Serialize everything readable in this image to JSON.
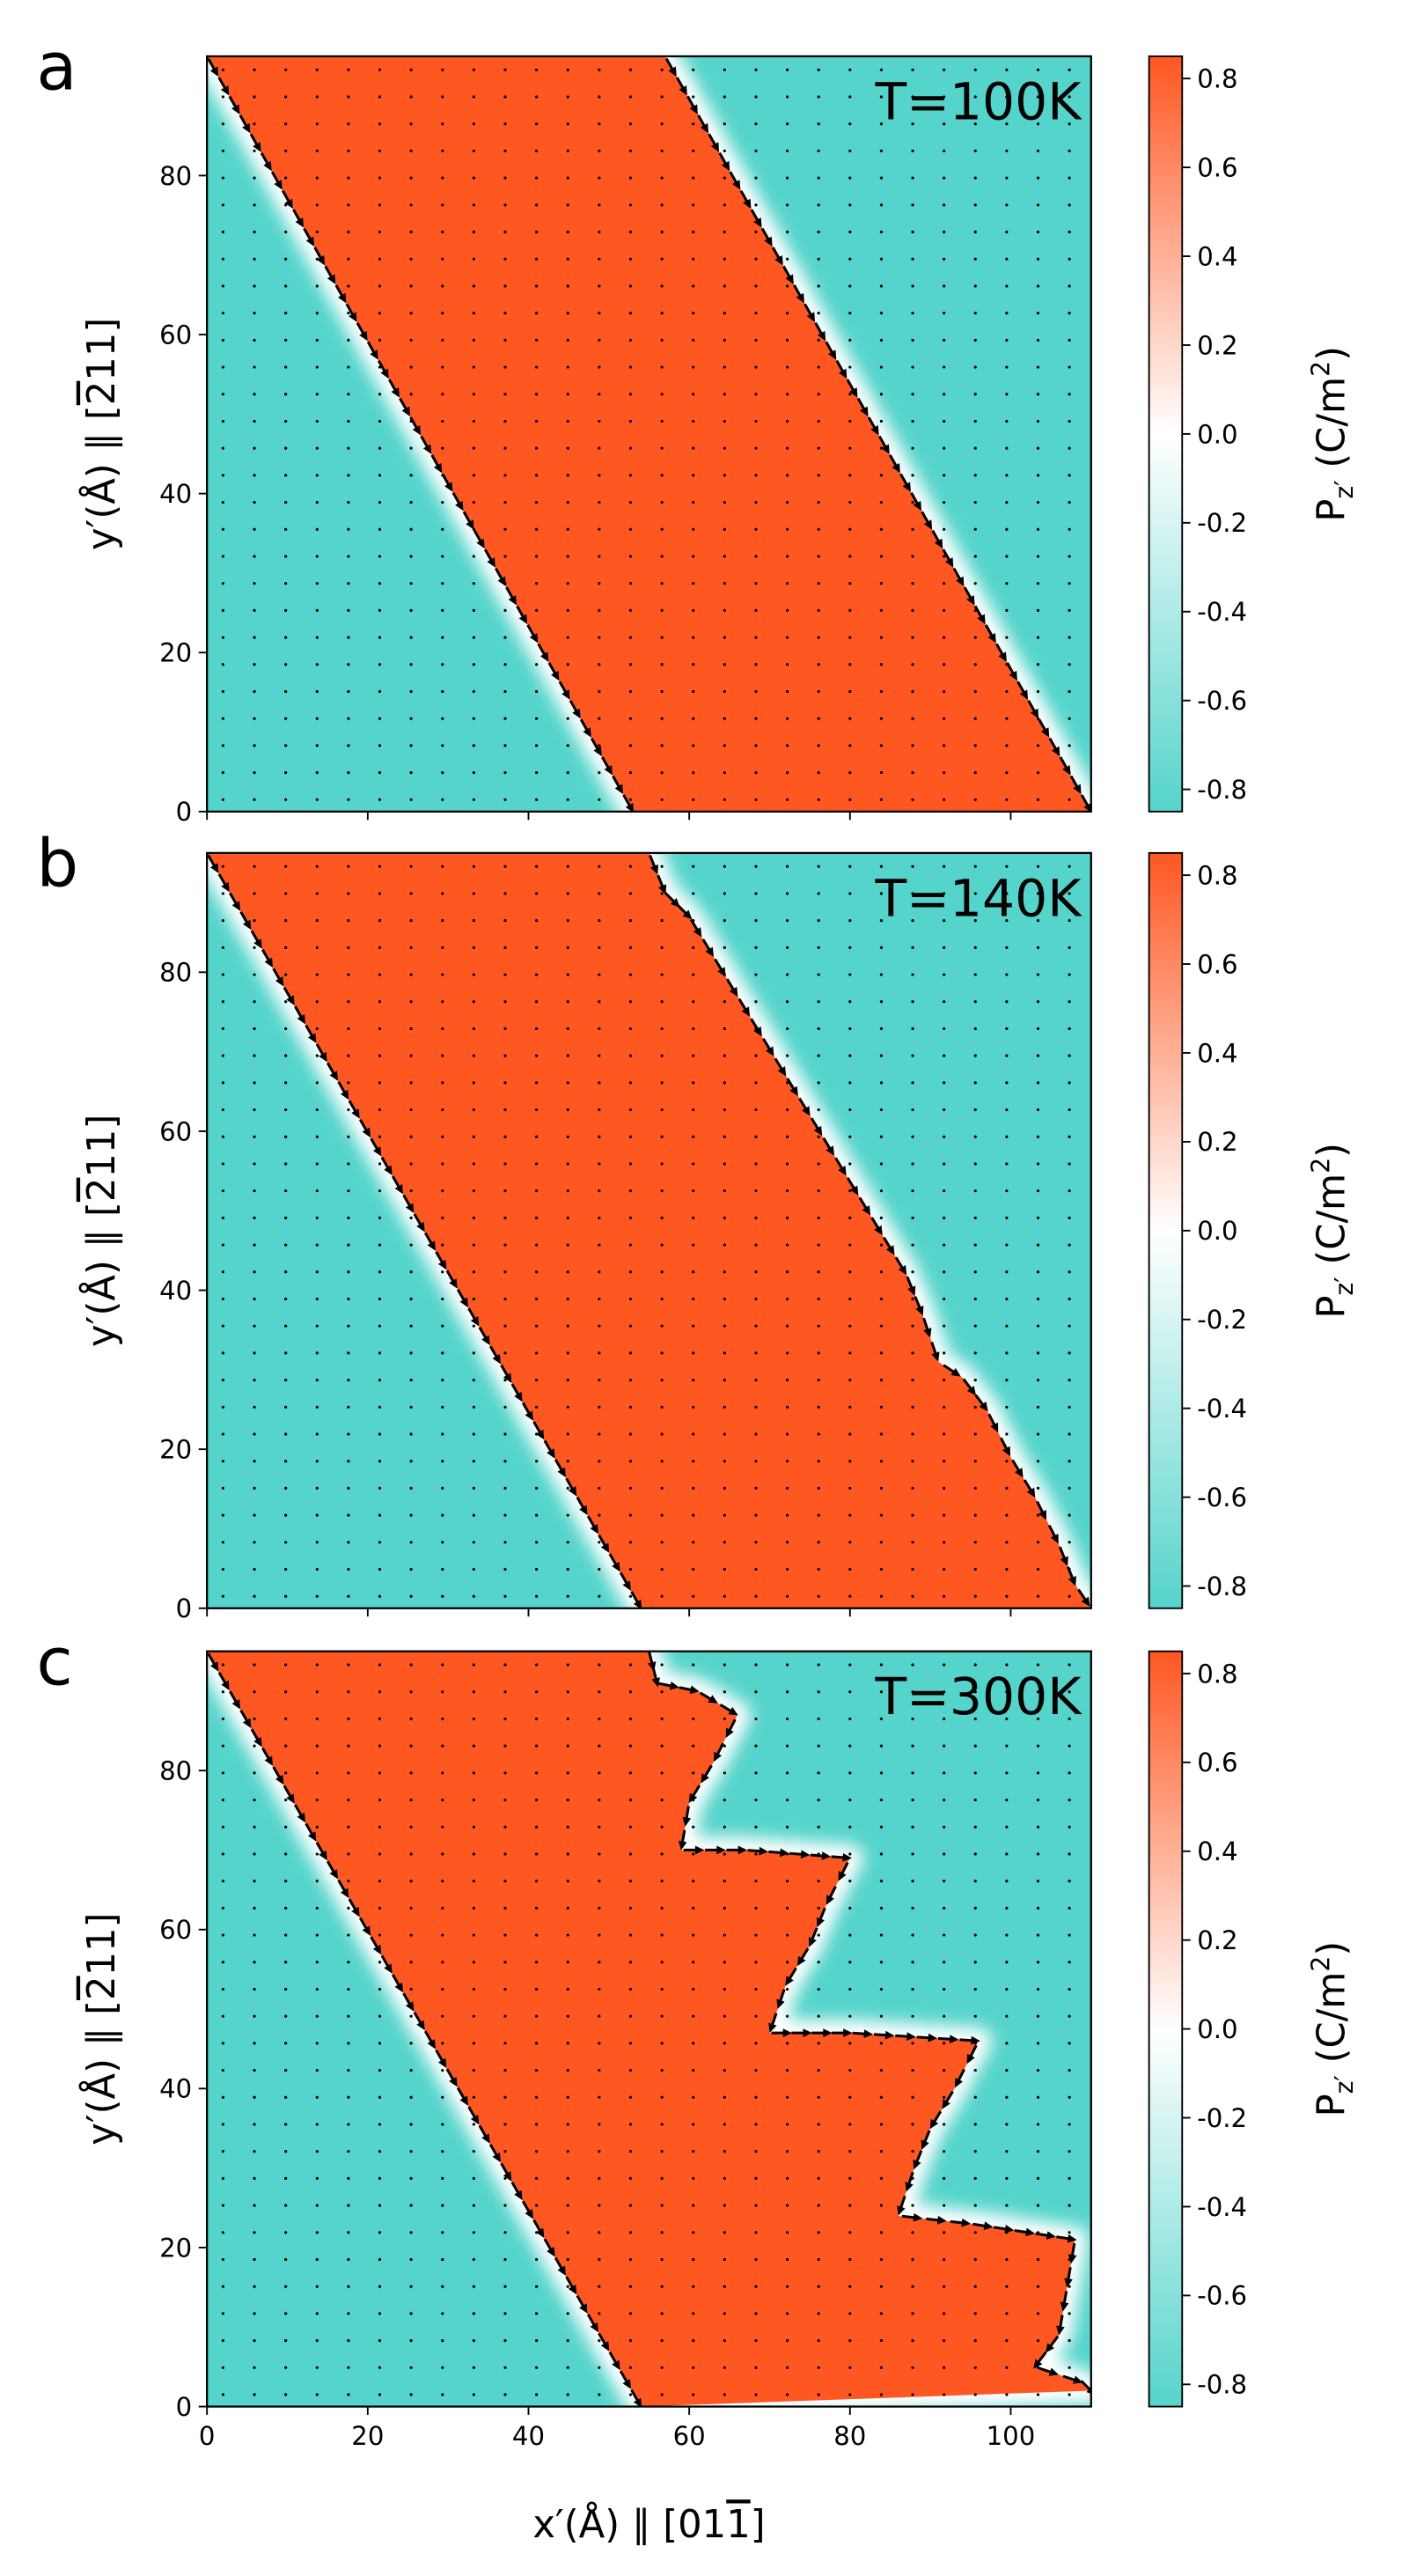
{
  "figure": {
    "xlabel": "x′(Å) ∥ [01",
    "xlabel_bar": "1",
    "xlabel_end": "]",
    "ylabel": "y′(Å) ∥ [",
    "ylabel_bar": "2",
    "ylabel_end": "11]",
    "colorbar_label_main": "P",
    "colorbar_label_sub": "z′",
    "colorbar_label_unit": " (C/m",
    "colorbar_label_sup": "2",
    "colorbar_label_close": ")"
  },
  "colors": {
    "positive": "#ff5722",
    "zero": "#ffffff",
    "negative": "#55d4cb",
    "text": "#000000"
  },
  "chart_data": [
    {
      "type": "heatmap",
      "panel_label": "a",
      "annotation": "T=100K",
      "xlim": [
        0,
        110
      ],
      "ylim": [
        0,
        95
      ],
      "x_ticks": [
        0,
        20,
        40,
        60,
        80,
        100
      ],
      "y_ticks": [
        0,
        20,
        40,
        60,
        80
      ],
      "colorbar_range": [
        -0.85,
        0.85
      ],
      "colorbar_ticks": [
        -0.8,
        -0.6,
        -0.4,
        -0.2,
        0.0,
        0.2,
        0.4,
        0.6,
        0.8
      ],
      "colorbar_tick_labels": [
        "-0.8",
        "-0.6",
        "-0.4",
        "-0.2",
        "0.0",
        "0.2",
        "0.4",
        "0.6",
        "0.8"
      ],
      "domain_value_positive": 0.8,
      "domain_value_negative": -0.8,
      "left_wall": [
        [
          0,
          95
        ],
        [
          53,
          0
        ]
      ],
      "right_wall": [
        [
          57,
          95
        ],
        [
          110,
          0
        ]
      ]
    },
    {
      "type": "heatmap",
      "panel_label": "b",
      "annotation": "T=140K",
      "xlim": [
        0,
        110
      ],
      "ylim": [
        0,
        95
      ],
      "x_ticks": [
        0,
        20,
        40,
        60,
        80,
        100
      ],
      "y_ticks": [
        0,
        20,
        40,
        60,
        80
      ],
      "colorbar_range": [
        -0.85,
        0.85
      ],
      "colorbar_ticks": [
        -0.8,
        -0.6,
        -0.4,
        -0.2,
        0.0,
        0.2,
        0.4,
        0.6,
        0.8
      ],
      "colorbar_tick_labels": [
        "-0.8",
        "-0.6",
        "-0.4",
        "-0.2",
        "0.0",
        "0.2",
        "0.4",
        "0.6",
        "0.8"
      ],
      "domain_value_positive": 0.8,
      "domain_value_negative": -0.8,
      "left_wall": [
        [
          0,
          95
        ],
        [
          54,
          0
        ]
      ],
      "right_wall": [
        [
          55,
          95
        ],
        [
          57,
          90
        ],
        [
          60,
          87
        ],
        [
          63,
          82
        ],
        [
          66,
          77
        ],
        [
          69,
          72
        ],
        [
          72,
          67
        ],
        [
          75,
          62
        ],
        [
          78,
          57
        ],
        [
          81,
          52
        ],
        [
          84,
          47
        ],
        [
          87,
          42
        ],
        [
          89,
          37
        ],
        [
          91,
          31
        ],
        [
          94,
          29
        ],
        [
          97,
          25
        ],
        [
          100,
          19
        ],
        [
          103,
          14
        ],
        [
          106,
          8
        ],
        [
          108,
          3
        ],
        [
          110,
          0
        ]
      ]
    },
    {
      "type": "heatmap",
      "panel_label": "c",
      "annotation": "T=300K",
      "xlim": [
        0,
        110
      ],
      "ylim": [
        0,
        95
      ],
      "x_ticks": [
        0,
        20,
        40,
        60,
        80,
        100
      ],
      "y_ticks": [
        0,
        20,
        40,
        60,
        80
      ],
      "x_tick_labels": [
        "0",
        "20",
        "40",
        "60",
        "80",
        "100"
      ],
      "colorbar_range": [
        -0.85,
        0.85
      ],
      "colorbar_ticks": [
        -0.8,
        -0.6,
        -0.4,
        -0.2,
        0.0,
        0.2,
        0.4,
        0.6,
        0.8
      ],
      "colorbar_tick_labels": [
        "-0.8",
        "-0.6",
        "-0.4",
        "-0.2",
        "0.0",
        "0.2",
        "0.4",
        "0.6",
        "0.8"
      ],
      "domain_value_positive": 0.8,
      "domain_value_negative": -0.8,
      "left_wall": [
        [
          0,
          95
        ],
        [
          54,
          0
        ]
      ],
      "right_wall": [
        [
          55,
          95
        ],
        [
          56,
          91
        ],
        [
          61,
          90
        ],
        [
          66,
          87
        ],
        [
          63,
          81
        ],
        [
          60,
          76
        ],
        [
          59,
          70
        ],
        [
          67,
          70
        ],
        [
          80,
          69
        ],
        [
          77,
          63
        ],
        [
          75,
          58
        ],
        [
          72,
          53
        ],
        [
          70,
          47
        ],
        [
          80,
          47
        ],
        [
          96,
          46
        ],
        [
          93,
          40
        ],
        [
          90,
          35
        ],
        [
          88,
          30
        ],
        [
          86,
          24
        ],
        [
          95,
          23
        ],
        [
          108,
          21
        ],
        [
          107,
          15
        ],
        [
          106,
          9
        ],
        [
          103,
          5
        ],
        [
          109,
          3
        ],
        [
          110,
          2
        ]
      ]
    }
  ]
}
